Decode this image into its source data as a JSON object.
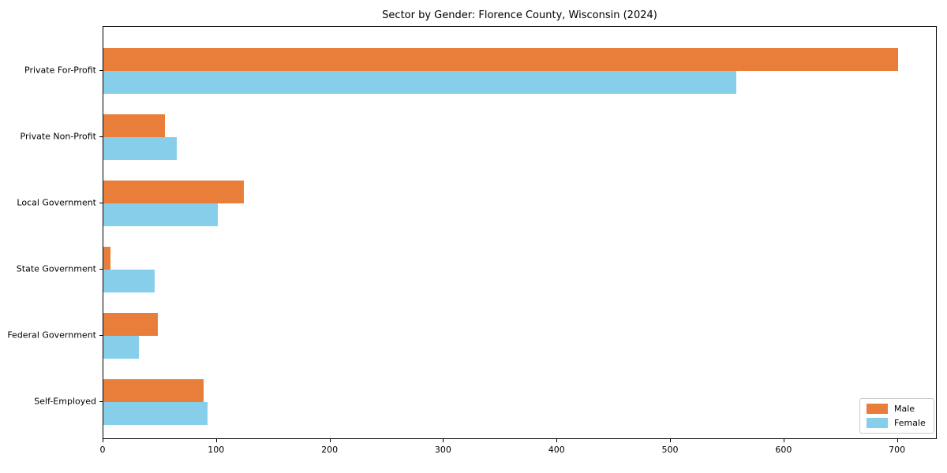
{
  "chart_data": {
    "type": "bar",
    "orientation": "horizontal",
    "title": "Sector by Gender: Florence County, Wisconsin (2024)",
    "categories": [
      "Private For-Profit",
      "Private Non-Profit",
      "Local Government",
      "State Government",
      "Federal Government",
      "Self-Employed"
    ],
    "series": [
      {
        "name": "Male",
        "color": "#E87E3A",
        "values": [
          700,
          54,
          124,
          6,
          48,
          88
        ]
      },
      {
        "name": "Female",
        "color": "#87CEEB",
        "values": [
          558,
          65,
          101,
          45,
          31,
          92
        ]
      }
    ],
    "xlabel": "",
    "ylabel": "",
    "xlim": [
      0,
      735
    ],
    "x_ticks": [
      0,
      100,
      200,
      300,
      400,
      500,
      600,
      700
    ],
    "legend_position": "lower right",
    "grid": false
  }
}
